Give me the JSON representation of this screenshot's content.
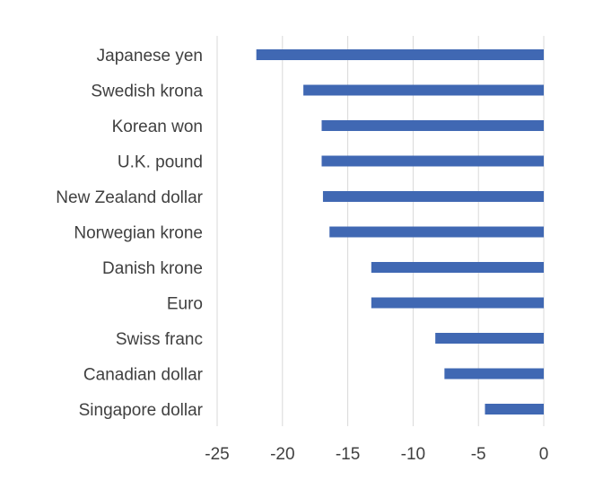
{
  "chart_data": {
    "type": "bar",
    "orientation": "horizontal",
    "title": "",
    "xlabel": "",
    "ylabel": "",
    "categories": [
      "Japanese yen",
      "Swedish krona",
      "Korean won",
      "U.K. pound",
      "New Zealand dollar",
      "Norwegian krone",
      "Danish krone",
      "Euro",
      "Swiss franc",
      "Canadian dollar",
      "Singapore dollar"
    ],
    "values": [
      -22.0,
      -18.4,
      -17.0,
      -17.0,
      -16.9,
      -16.4,
      -13.2,
      -13.2,
      -8.3,
      -7.6,
      -4.5
    ],
    "xlim": [
      -25,
      0
    ],
    "xticks": [
      "-25",
      "-20",
      "-15",
      "-10",
      "-5",
      "0"
    ],
    "grid": true,
    "legend": "none",
    "bar_color": "#4068b3"
  }
}
